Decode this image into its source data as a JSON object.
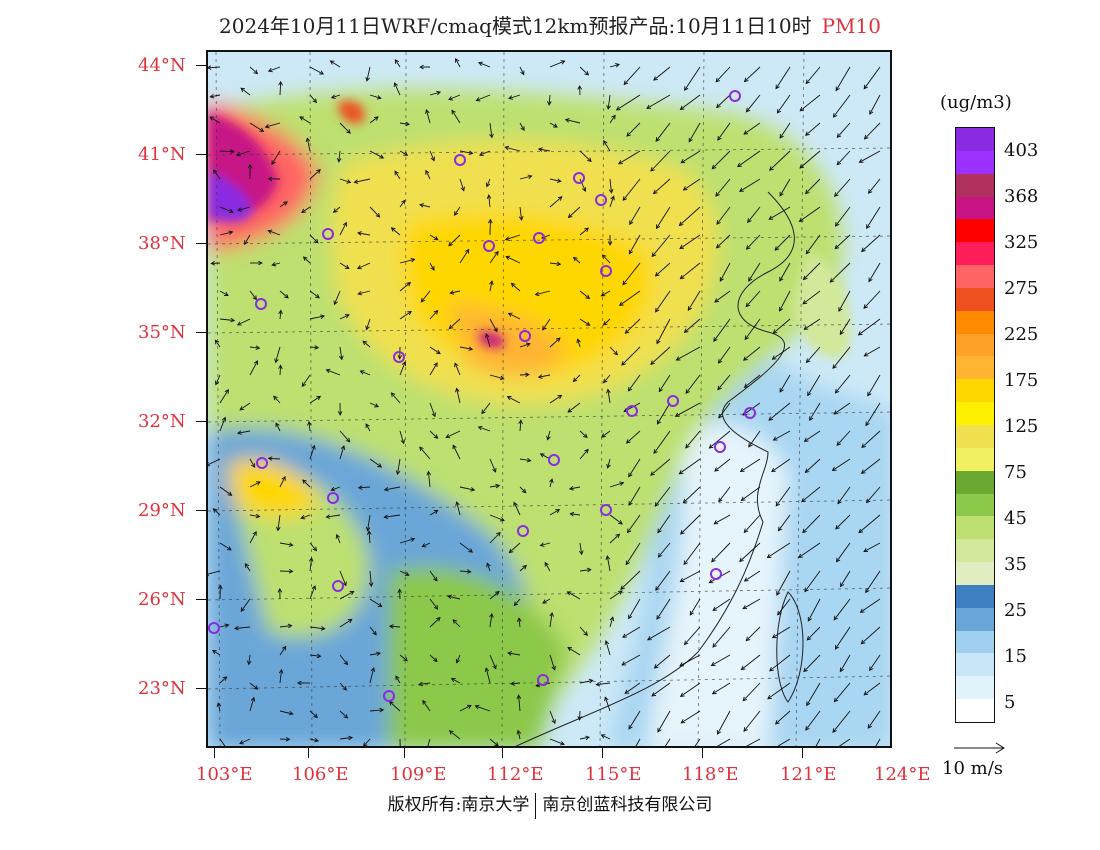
{
  "title": "2024年10月11日WRF/cmaq模式12km预报产品:10月11日10时",
  "variable": "PM10",
  "units": "(ug/m3)",
  "lat_labels": [
    "44°N",
    "41°N",
    "38°N",
    "35°N",
    "32°N",
    "29°N",
    "26°N",
    "23°N"
  ],
  "lon_labels": [
    "103°E",
    "106°E",
    "109°E",
    "112°E",
    "115°E",
    "118°E",
    "121°E",
    "124°E"
  ],
  "legend": {
    "labels": [
      "403",
      "368",
      "325",
      "275",
      "225",
      "175",
      "125",
      "75",
      "45",
      "35",
      "25",
      "15",
      "5"
    ],
    "colors": [
      "#8a2be2",
      "#9b30ff",
      "#b03060",
      "#c71585",
      "#ff0000",
      "#ff1e5a",
      "#ff6464",
      "#ee5020",
      "#ff8c00",
      "#ffa028",
      "#ffb432",
      "#ffd700",
      "#fff000",
      "#f0e050",
      "#f0f060",
      "#6aa832",
      "#8cc84a",
      "#bde070",
      "#d2e89a",
      "#e0edc0",
      "#3d7fc0",
      "#6aa6d8",
      "#a0d0f0",
      "#c8e6f8",
      "#e2f2fb",
      "#ffffff"
    ]
  },
  "wind_key": "10 m/s",
  "footer": {
    "left": "版权所有:南京大学",
    "right": "南京创蓝科技有限公司"
  },
  "colors": {
    "axis_label": "#e0323c",
    "city_marker": "#8a2be2"
  }
}
